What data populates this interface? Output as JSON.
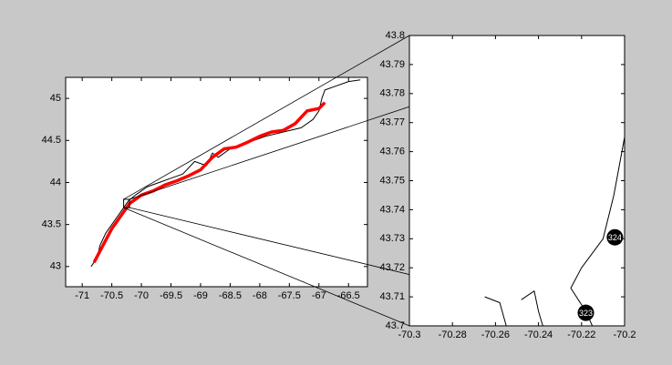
{
  "chart_data": [
    {
      "type": "line",
      "xlim": [
        -71.28,
        -66.18
      ],
      "ylim": [
        42.76,
        45.25
      ],
      "xticks": [
        -71,
        -70.5,
        -70,
        -69.5,
        -69,
        -68.5,
        -68,
        -67.5,
        -67,
        -66.5
      ],
      "yticks": [
        43,
        43.5,
        44,
        44.5,
        45
      ],
      "series": [
        {
          "color": "#000000",
          "style": "line",
          "x": [
            -70.85,
            -70.75,
            -70.7,
            -70.6,
            -70.45,
            -70.3,
            -70.22,
            -70.1,
            -69.9,
            -69.7,
            -69.5,
            -69.3,
            -69.1,
            -68.9,
            -68.8,
            -68.7,
            -68.5,
            -68.3,
            -68.1,
            -67.9,
            -67.6,
            -67.3,
            -67.1,
            -67.0,
            -66.95,
            -66.9,
            -66.7,
            -66.5,
            -66.3
          ],
          "values": [
            43.0,
            43.1,
            43.25,
            43.4,
            43.55,
            43.7,
            43.78,
            43.85,
            43.95,
            44.0,
            44.05,
            44.1,
            44.25,
            44.2,
            44.35,
            44.3,
            44.4,
            44.45,
            44.5,
            44.55,
            44.6,
            44.65,
            44.75,
            44.85,
            45.0,
            45.1,
            45.15,
            45.2,
            45.22
          ]
        },
        {
          "color": "#ff0000",
          "style": "thick",
          "x": [
            -70.8,
            -70.65,
            -70.5,
            -70.35,
            -70.2,
            -70.0,
            -69.8,
            -69.6,
            -69.4,
            -69.2,
            -69.0,
            -68.8,
            -68.6,
            -68.4,
            -68.2,
            -68.0,
            -67.8,
            -67.6,
            -67.4,
            -67.2,
            -67.0,
            -66.9
          ],
          "values": [
            43.05,
            43.25,
            43.45,
            43.6,
            43.75,
            43.85,
            43.9,
            43.97,
            44.02,
            44.08,
            44.15,
            44.3,
            44.4,
            44.42,
            44.48,
            44.55,
            44.6,
            44.62,
            44.7,
            44.85,
            44.88,
            44.95
          ]
        }
      ]
    },
    {
      "type": "line",
      "xlim": [
        -70.3,
        -70.2
      ],
      "ylim": [
        43.7,
        43.8
      ],
      "xticks": [
        -70.3,
        -70.28,
        -70.26,
        -70.24,
        -70.22,
        -70.2
      ],
      "yticks": [
        43.7,
        43.71,
        43.72,
        43.73,
        43.74,
        43.75,
        43.76,
        43.77,
        43.78,
        43.79,
        43.8
      ],
      "series": [
        {
          "color": "#000000",
          "style": "line",
          "x": [
            -70.2,
            -70.205,
            -70.21,
            -70.22,
            -70.225,
            -70.218,
            -70.215,
            null,
            -70.265,
            -70.258,
            -70.255,
            null,
            -70.248,
            -70.242,
            -70.24,
            -70.238
          ],
          "values": [
            43.765,
            43.745,
            43.73,
            43.72,
            43.713,
            43.705,
            43.7,
            null,
            43.71,
            43.708,
            43.7,
            null,
            43.709,
            43.712,
            43.705,
            43.7
          ]
        },
        {
          "color": "#000000",
          "style": "marker",
          "x": [
            -70.218,
            -70.2045
          ],
          "values": [
            43.7045,
            43.7305
          ],
          "labels": [
            "323",
            "324"
          ]
        }
      ]
    }
  ]
}
